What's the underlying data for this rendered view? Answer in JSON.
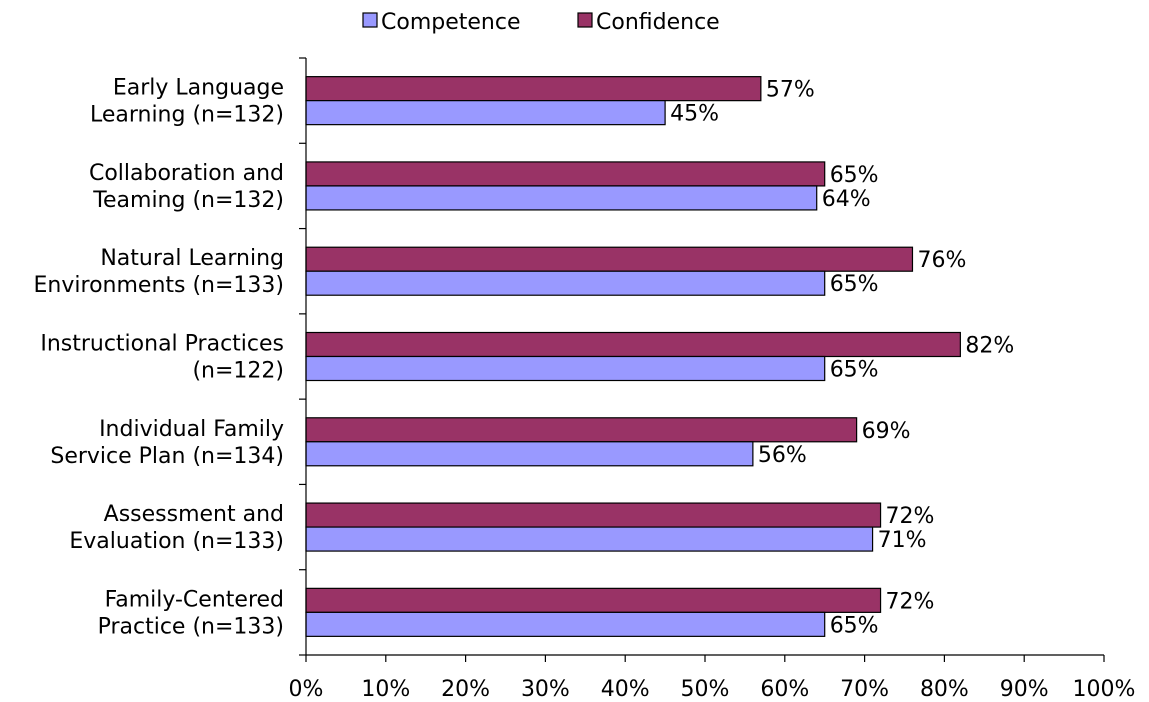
{
  "chart_data": {
    "type": "bar",
    "orientation": "horizontal",
    "categories": [
      [
        "Early Language",
        "Learning (n=132)"
      ],
      [
        "Collaboration and",
        "Teaming (n=132)"
      ],
      [
        "Natural Learning",
        "Environments (n=133)"
      ],
      [
        "Instructional Practices",
        "(n=122)"
      ],
      [
        "Individual Family",
        "Service Plan (n=134)"
      ],
      [
        "Assessment and",
        "Evaluation (n=133)"
      ],
      [
        "Family-Centered",
        "Practice (n=133)"
      ]
    ],
    "series": [
      {
        "name": "Competence",
        "color": "#9999FF",
        "values": [
          45,
          64,
          65,
          65,
          56,
          71,
          65
        ],
        "labels": [
          "45%",
          "64%",
          "65%",
          "65%",
          "56%",
          "71%",
          "65%"
        ]
      },
      {
        "name": "Confidence",
        "color": "#993366",
        "values": [
          57,
          65,
          76,
          82,
          69,
          72,
          72
        ],
        "labels": [
          "57%",
          "65%",
          "76%",
          "82%",
          "69%",
          "72%",
          "72%"
        ]
      }
    ],
    "xlim": [
      0,
      100
    ],
    "x_ticks": [
      0,
      10,
      20,
      30,
      40,
      50,
      60,
      70,
      80,
      90,
      100
    ],
    "x_tick_labels": [
      "0%",
      "10%",
      "20%",
      "30%",
      "40%",
      "50%",
      "60%",
      "70%",
      "80%",
      "90%",
      "100%"
    ],
    "legend_position": "top",
    "grid": false,
    "title": "",
    "xlabel": "",
    "ylabel": ""
  }
}
